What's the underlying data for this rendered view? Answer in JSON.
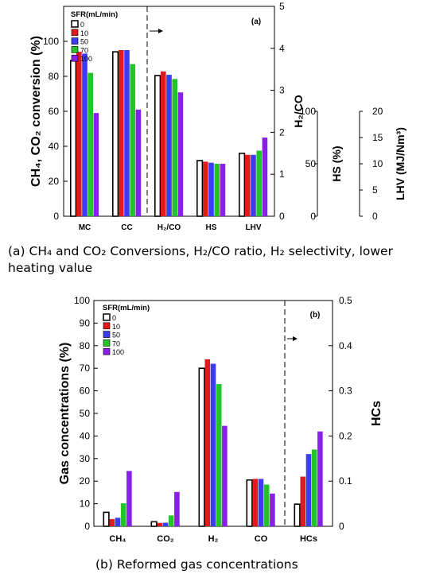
{
  "colors": {
    "sfr_0": "#ffffff",
    "sfr_10": "#e01b1b",
    "sfr_50": "#3c3cf0",
    "sfr_70": "#22c42a",
    "sfr_100": "#8a1fe8"
  },
  "chart_data": [
    {
      "type": "bar",
      "panel_label": "(a)",
      "legend_title": "SFR(mL/min)",
      "legend_placement": "top-left",
      "categories": [
        "MC",
        "CC",
        "H₂/CO",
        "HS",
        "LHV"
      ],
      "ylabel_left": "CH₄, CO₂ conversion (%)",
      "ylabel_h2co": "H₂/CO",
      "ylabel_hs": "HS (%)",
      "ylabel_lhv": "LHV (MJ/Nm³)",
      "ylim_left": [
        0,
        120
      ],
      "ylim_h2co": [
        0,
        5
      ],
      "ylim_hs": [
        0,
        100
      ],
      "ylim_lhv": [
        0,
        20
      ],
      "left_ticks": [
        "0",
        "20",
        "40",
        "60",
        "80",
        "100"
      ],
      "h2co_ticks": [
        "0",
        "1",
        "2",
        "3",
        "4",
        "5"
      ],
      "hs_ticks": [
        "0",
        "50",
        "100"
      ],
      "lhv_ticks": [
        "0",
        "5",
        "10",
        "15",
        "20"
      ],
      "series": [
        {
          "name": "0",
          "values": [
            89,
            94,
            3.35,
            53,
            12.0
          ]
        },
        {
          "name": "10",
          "values": [
            94,
            95,
            3.45,
            52,
            11.7
          ]
        },
        {
          "name": "50",
          "values": [
            93,
            95,
            3.37,
            51,
            11.7
          ]
        },
        {
          "name": "70",
          "values": [
            82,
            87,
            3.27,
            50,
            12.5
          ]
        },
        {
          "name": "100",
          "values": [
            59,
            61,
            2.95,
            50,
            15.0
          ]
        }
      ],
      "caption": "(a) CH₄ and CO₂ Conversions, H₂/CO ratio, H₂ selectivity, lower heating value"
    },
    {
      "type": "bar",
      "panel_label": "(b)",
      "legend_title": "SFR(mL/min)",
      "legend_placement": "top-left",
      "categories": [
        "CH₄",
        "CO₂",
        "H₂",
        "CO",
        "HCs"
      ],
      "ylabel_left": "Gas concentrations (%)",
      "ylabel_right": "HCs",
      "ylim_left": [
        0,
        100
      ],
      "ylim_right": [
        0,
        0.5
      ],
      "left_ticks": [
        "0",
        "10",
        "20",
        "30",
        "40",
        "50",
        "60",
        "70",
        "80",
        "90",
        "100"
      ],
      "right_ticks": [
        "0",
        "0.1",
        "0.2",
        "0.3",
        "0.4",
        "0.5"
      ],
      "series": [
        {
          "name": "0",
          "values": [
            6.2,
            2.0,
            70,
            20.5,
            0.049
          ]
        },
        {
          "name": "10",
          "values": [
            3.2,
            1.5,
            74,
            21,
            0.11
          ]
        },
        {
          "name": "50",
          "values": [
            3.8,
            1.6,
            72,
            21,
            0.16
          ]
        },
        {
          "name": "70",
          "values": [
            10.2,
            4.8,
            63,
            18.5,
            0.17
          ]
        },
        {
          "name": "100",
          "values": [
            24.5,
            15.2,
            44.5,
            14.5,
            0.21
          ]
        }
      ],
      "caption": "(b) Reformed gas concentrations"
    }
  ]
}
